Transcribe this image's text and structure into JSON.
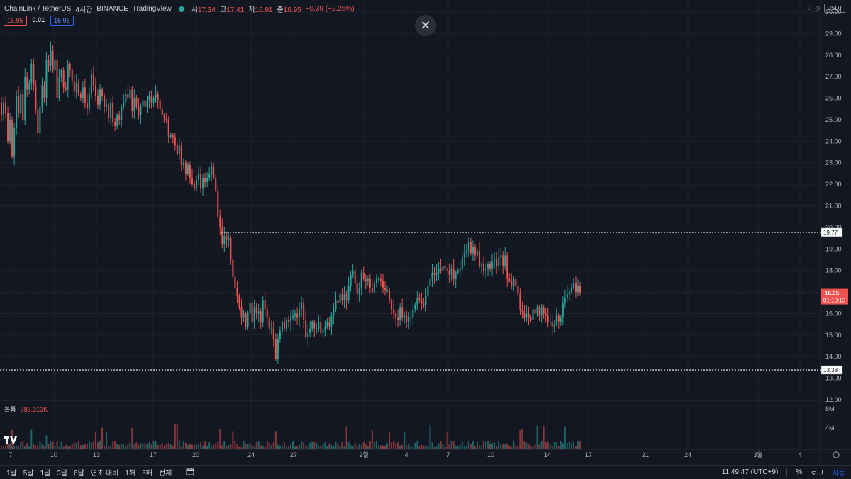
{
  "header": {
    "symbol": "ChainLink / TetherUS",
    "interval": "4시간",
    "exchange": "BINANCE",
    "provider": "TradingView",
    "ohlc": [
      {
        "k": "시",
        "v": "17.34"
      },
      {
        "k": "고",
        "v": "17.41"
      },
      {
        "k": "저",
        "v": "16.91"
      },
      {
        "k": "종",
        "v": "16.95"
      }
    ],
    "change": "−0.39 (−2.25%)",
    "bid": "16.95",
    "spread": "0.01",
    "ask": "16.96"
  },
  "currency_button": "USDT",
  "close_symbol": "✕",
  "volume": {
    "label": "볼륨",
    "value": "386.313K"
  },
  "price_labels": {
    "resistance": "19.77",
    "support": "13.38",
    "current": "16.95",
    "countdown": "01:10:13"
  },
  "price_axis_ticks": [
    "30.00",
    "29.00",
    "28.00",
    "27.00",
    "26.00",
    "25.00",
    "24.00",
    "23.00",
    "22.00",
    "21.00",
    "20.00",
    "19.00",
    "18.00",
    "17.00",
    "16.00",
    "15.00",
    "14.00",
    "13.00",
    "12.00"
  ],
  "volume_axis_ticks": [
    "8M",
    "4M"
  ],
  "time_axis_ticks": [
    "7",
    "10",
    "13",
    "17",
    "20",
    "24",
    "27",
    "2월",
    "4",
    "7",
    "10",
    "14",
    "17",
    "21",
    "24",
    "3월",
    "4"
  ],
  "bottom": {
    "ranges": [
      "1날",
      "5날",
      "1달",
      "3달",
      "6달",
      "연초 대비",
      "1해",
      "5해",
      "전체"
    ],
    "time": "11:49:47 (UTC+9)",
    "percent": "%",
    "log": "로그",
    "auto": "자동"
  },
  "colors": {
    "up": "#26a69a",
    "down": "#ef5350",
    "bg": "#131722",
    "grid": "#1e222d",
    "accent": "#2962ff"
  },
  "chart_data": {
    "type": "candlestick",
    "title": "ChainLink / TetherUS",
    "ylim": [
      12,
      30
    ],
    "levels": {
      "resistance": 19.77,
      "support": 13.38,
      "current": 16.95
    },
    "closes": [
      25.2,
      25.8,
      25.3,
      24.0,
      25.0,
      23.3,
      24.6,
      26.1,
      25.3,
      26.2,
      25.0,
      27.0,
      26.4,
      26.7,
      27.6,
      26.6,
      25.5,
      24.4,
      25.6,
      26.6,
      26.0,
      27.8,
      27.5,
      28.2,
      27.3,
      27.8,
      26.0,
      27.0,
      27.3,
      26.5,
      26.4,
      27.6,
      27.3,
      26.8,
      26.3,
      26.7,
      26.2,
      26.0,
      26.5,
      25.8,
      25.5,
      26.2,
      27.1,
      26.6,
      26.1,
      25.7,
      26.4,
      26.1,
      25.6,
      25.7,
      25.1,
      25.8,
      24.9,
      24.7,
      25.2,
      25.0,
      25.6,
      25.8,
      26.2,
      26.0,
      26.4,
      25.4,
      26.0,
      25.6,
      25.2,
      25.6,
      25.9,
      25.6,
      25.9,
      26.1,
      25.8,
      26.0,
      26.2,
      25.9,
      25.5,
      25.2,
      25.1,
      25.0,
      24.2,
      24.3,
      24.2,
      23.8,
      23.4,
      23.8,
      22.9,
      23.0,
      22.5,
      22.9,
      22.3,
      22.0,
      21.8,
      22.2,
      22.5,
      21.8,
      22.3,
      22.1,
      22.3,
      22.5,
      22.8,
      22.3,
      21.7,
      20.5,
      20.0,
      19.2,
      19.6,
      19.4,
      19.5,
      18.5,
      17.7,
      17.2,
      16.8,
      16.3,
      15.8,
      16.0,
      15.4,
      16.0,
      16.5,
      15.6,
      16.3,
      16.0,
      16.1,
      15.6,
      16.6,
      16.2,
      15.8,
      15.3,
      15.3,
      14.8,
      13.9,
      14.8,
      15.2,
      15.6,
      15.3,
      15.7,
      15.6,
      15.8,
      15.9,
      16.0,
      15.8,
      16.2,
      16.5,
      15.7,
      14.9,
      15.1,
      15.3,
      15.6,
      15.3,
      15.3,
      15.6,
      15.1,
      15.2,
      15.4,
      15.6,
      15.4,
      15.9,
      16.2,
      16.6,
      16.5,
      16.9,
      16.6,
      16.9,
      16.6,
      17.3,
      17.8,
      18.0,
      17.4,
      16.9,
      17.2,
      17.9,
      17.6,
      17.5,
      17.6,
      17.2,
      17.0,
      17.4,
      17.6,
      17.6,
      17.5,
      17.2,
      17.1,
      17.1,
      16.6,
      16.2,
      16.0,
      15.8,
      15.7,
      16.3,
      15.8,
      15.9,
      15.6,
      15.8,
      15.8,
      16.2,
      16.4,
      16.7,
      16.6,
      16.5,
      16.4,
      16.8,
      17.3,
      17.6,
      17.9,
      17.8,
      17.9,
      18.1,
      18.0,
      18.2,
      18.1,
      18.0,
      17.8,
      18.1,
      17.6,
      17.9,
      18.0,
      18.1,
      18.6,
      18.8,
      18.9,
      19.3,
      18.8,
      19.1,
      18.7,
      18.9,
      18.2,
      18.3,
      18.0,
      18.1,
      18.3,
      18.1,
      18.4,
      18.5,
      18.2,
      18.6,
      18.7,
      18.2,
      18.7,
      17.6,
      17.5,
      17.3,
      17.6,
      17.3,
      16.9,
      16.2,
      16.1,
      15.8,
      16.0,
      15.8,
      15.7,
      16.2,
      16.0,
      16.3,
      15.9,
      16.3,
      16.0,
      15.9,
      15.6,
      15.6,
      15.4,
      15.5,
      15.9,
      15.6,
      15.8,
      16.5,
      16.7,
      16.9,
      17.0,
      17.2,
      17.4,
      17.0,
      17.3,
      16.95
    ],
    "x_ticks": [
      "7",
      "10",
      "13",
      "17",
      "20",
      "24",
      "27",
      "2월",
      "4",
      "7",
      "10",
      "14",
      "17",
      "21",
      "24",
      "3월",
      "4"
    ],
    "volume_max": "8M"
  }
}
